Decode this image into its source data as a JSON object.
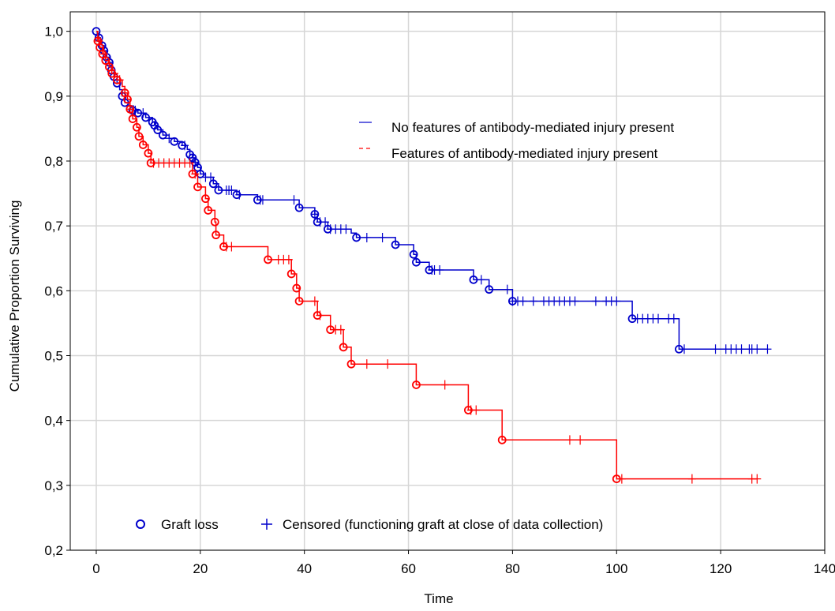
{
  "chart_data": {
    "type": "line",
    "subtype": "kaplan-meier",
    "title": "",
    "xlabel": "Time",
    "ylabel": "Cumulative Proportion Surviving",
    "xlim": [
      -5,
      140
    ],
    "ylim": [
      0.2,
      1.03
    ],
    "x_ticks": [
      0,
      20,
      40,
      60,
      80,
      100,
      120,
      140
    ],
    "x_tick_labels": [
      "0",
      "20",
      "40",
      "60",
      "80",
      "100",
      "120",
      "140"
    ],
    "y_ticks": [
      0.2,
      0.3,
      0.4,
      0.5,
      0.6,
      0.7,
      0.8,
      0.9,
      1.0
    ],
    "y_tick_labels": [
      "0,2",
      "0,3",
      "0,4",
      "0,5",
      "0,6",
      "0,7",
      "0,8",
      "0,9",
      "1,0"
    ],
    "grid": true,
    "legend_position": "top-right",
    "marker_legend": {
      "event_label": "Graft loss",
      "censor_label": "Censored (functioning graft at close of data collection)",
      "position": "bottom-left"
    },
    "series": [
      {
        "name": "No features of antibody-mediated injury present",
        "color": "#0000cc",
        "steps": [
          [
            0,
            1.0
          ],
          [
            0.2,
            0.995
          ],
          [
            0.5,
            0.99
          ],
          [
            0.8,
            0.985
          ],
          [
            1.1,
            0.978
          ],
          [
            1.5,
            0.97
          ],
          [
            2.0,
            0.96
          ],
          [
            2.5,
            0.952
          ],
          [
            2.9,
            0.94
          ],
          [
            3.4,
            0.93
          ],
          [
            4.0,
            0.92
          ],
          [
            4.5,
            0.91
          ],
          [
            5.0,
            0.9
          ],
          [
            5.5,
            0.89
          ],
          [
            6.2,
            0.885
          ],
          [
            7.0,
            0.878
          ],
          [
            8.0,
            0.874
          ],
          [
            9.5,
            0.867
          ],
          [
            10.8,
            0.86
          ],
          [
            11.2,
            0.855
          ],
          [
            11.8,
            0.848
          ],
          [
            12.8,
            0.84
          ],
          [
            14.0,
            0.835
          ],
          [
            15.0,
            0.83
          ],
          [
            16.5,
            0.824
          ],
          [
            17.5,
            0.818
          ],
          [
            18.0,
            0.81
          ],
          [
            18.5,
            0.805
          ],
          [
            19.0,
            0.798
          ],
          [
            19.5,
            0.79
          ],
          [
            20.0,
            0.78
          ],
          [
            21.0,
            0.775
          ],
          [
            22.5,
            0.765
          ],
          [
            23.5,
            0.755
          ],
          [
            27.0,
            0.748
          ],
          [
            31.0,
            0.74
          ],
          [
            39.0,
            0.728
          ],
          [
            42.0,
            0.718
          ],
          [
            42.5,
            0.706
          ],
          [
            44.5,
            0.695
          ],
          [
            49.0,
            0.689
          ],
          [
            50.0,
            0.682
          ],
          [
            57.5,
            0.671
          ],
          [
            61.0,
            0.656
          ],
          [
            61.5,
            0.644
          ],
          [
            64.0,
            0.632
          ],
          [
            72.5,
            0.617
          ],
          [
            75.5,
            0.602
          ],
          [
            80.0,
            0.584
          ],
          [
            103.0,
            0.557
          ],
          [
            112.0,
            0.51
          ],
          [
            129.0,
            0.51
          ]
        ],
        "events": [
          0,
          0.5,
          1.1,
          1.5,
          2.0,
          2.5,
          2.9,
          3.4,
          4.0,
          5.0,
          5.5,
          7.0,
          8.0,
          9.5,
          10.8,
          11.2,
          11.8,
          12.8,
          15.0,
          16.5,
          18.0,
          18.5,
          19.0,
          19.5,
          20.0,
          22.5,
          23.5,
          27.0,
          31.0,
          39.0,
          42.0,
          42.5,
          44.5,
          50.0,
          57.5,
          61.0,
          61.5,
          64.0,
          72.5,
          75.5,
          80.0,
          103.0,
          112.0
        ],
        "censored": [
          6.5,
          7.5,
          9.0,
          14.0,
          17.0,
          19.0,
          21.0,
          22.0,
          25.0,
          25.5,
          26.0,
          27.5,
          31.5,
          32.0,
          38.0,
          42.0,
          43.0,
          44.0,
          45.0,
          46.0,
          47.0,
          48.0,
          52.0,
          55.0,
          64.5,
          65.0,
          66.0,
          74.0,
          79.0,
          80.0,
          81.0,
          82.0,
          84.0,
          86.0,
          87.0,
          88.0,
          89.0,
          90.0,
          91.0,
          92.0,
          96.0,
          98.0,
          99.0,
          100.0,
          104.0,
          105.0,
          106.0,
          107.0,
          108.0,
          110.0,
          111.0,
          113.0,
          119.0,
          121.0,
          122.0,
          123.0,
          124.0,
          125.5,
          126.0,
          127.0,
          129.0
        ]
      },
      {
        "name": "Features of antibody-mediated injury present",
        "color": "#ff0000",
        "steps": [
          [
            0,
            1.0
          ],
          [
            0.3,
            0.985
          ],
          [
            0.7,
            0.975
          ],
          [
            1.2,
            0.965
          ],
          [
            1.8,
            0.955
          ],
          [
            2.5,
            0.945
          ],
          [
            3.0,
            0.935
          ],
          [
            4.0,
            0.925
          ],
          [
            5.0,
            0.915
          ],
          [
            5.5,
            0.905
          ],
          [
            6.0,
            0.895
          ],
          [
            6.5,
            0.88
          ],
          [
            7.0,
            0.865
          ],
          [
            7.8,
            0.852
          ],
          [
            8.2,
            0.838
          ],
          [
            9.0,
            0.825
          ],
          [
            10.0,
            0.812
          ],
          [
            10.5,
            0.797
          ],
          [
            18.5,
            0.78
          ],
          [
            19.5,
            0.76
          ],
          [
            21.0,
            0.742
          ],
          [
            21.5,
            0.724
          ],
          [
            22.8,
            0.706
          ],
          [
            23.0,
            0.686
          ],
          [
            24.5,
            0.668
          ],
          [
            33.0,
            0.648
          ],
          [
            37.5,
            0.626
          ],
          [
            38.5,
            0.604
          ],
          [
            39.0,
            0.584
          ],
          [
            42.5,
            0.562
          ],
          [
            45.0,
            0.54
          ],
          [
            47.5,
            0.513
          ],
          [
            49.0,
            0.487
          ],
          [
            61.5,
            0.455
          ],
          [
            71.5,
            0.416
          ],
          [
            78.0,
            0.37
          ],
          [
            100.0,
            0.31
          ],
          [
            127.0,
            0.31
          ]
        ],
        "events": [
          0.3,
          0.7,
          1.2,
          1.8,
          2.5,
          3.0,
          4.0,
          5.5,
          6.0,
          6.5,
          7.0,
          7.8,
          8.2,
          9.0,
          10.0,
          10.5,
          18.5,
          19.5,
          21.0,
          21.5,
          22.8,
          23.0,
          24.5,
          33.0,
          37.5,
          38.5,
          39.0,
          42.5,
          45.0,
          47.5,
          49.0,
          61.5,
          71.5,
          78.0,
          100.0
        ],
        "censored": [
          0.5,
          1.5,
          3.5,
          4.5,
          5.5,
          6.5,
          11.0,
          12.0,
          13.0,
          14.0,
          15.0,
          16.0,
          17.0,
          18.0,
          19.0,
          25.0,
          26.0,
          35.0,
          36.0,
          37.0,
          42.0,
          43.0,
          46.0,
          47.0,
          52.0,
          56.0,
          67.0,
          72.0,
          73.0,
          91.0,
          93.0,
          101.0,
          114.5,
          126.0,
          127.0
        ]
      }
    ]
  }
}
